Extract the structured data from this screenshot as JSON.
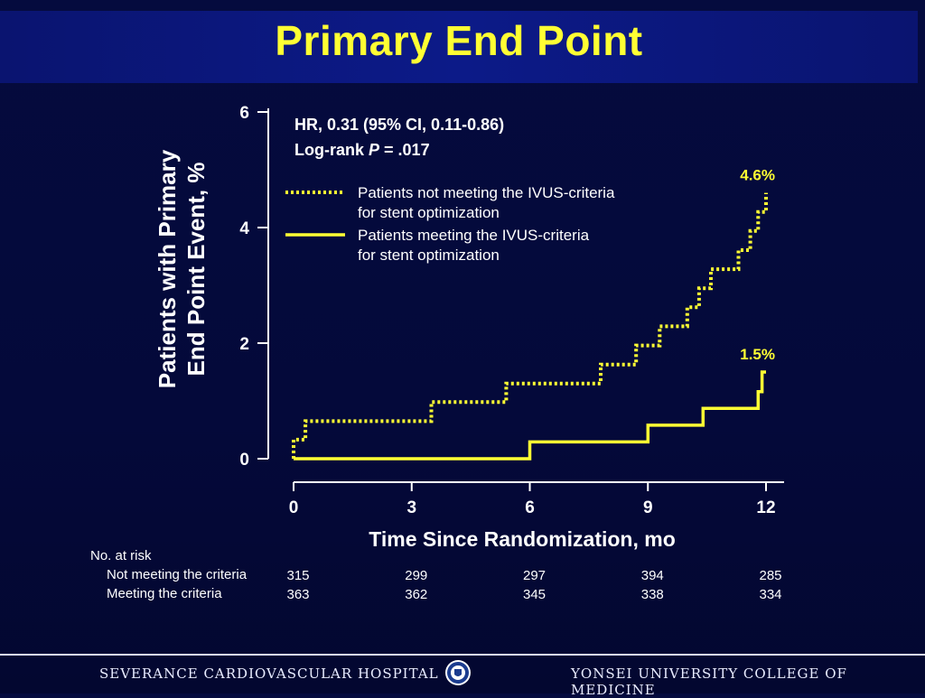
{
  "title": "Primary End Point",
  "colors": {
    "background": "#04093a",
    "title_bar": "#0c1a88",
    "title_text": "#ffff33",
    "series": "#ffff33"
  },
  "chart_data": {
    "type": "line",
    "subtype": "kaplan-meier step",
    "ylabel": [
      "Patients with Primary",
      "End Point Event, %"
    ],
    "xlabel": "Time Since Randomization, mo",
    "xlim": [
      0,
      12
    ],
    "ylim": [
      0,
      6
    ],
    "xticks": [
      0,
      3,
      6,
      9,
      12
    ],
    "yticks": [
      0,
      2,
      4,
      6
    ],
    "annotation": {
      "line1": "HR, 0.31 (95% CI, 0.11-0.86)",
      "line2_prefix": "Log-rank ",
      "line2_italic": "P",
      "line2_suffix": " = .017"
    },
    "legend_position": "top-center",
    "series": [
      {
        "name_lines": [
          "Patients not meeting the IVUS-criteria",
          "for stent optimization"
        ],
        "style": "dotted",
        "end_label": "4.6%",
        "points": [
          [
            0,
            0
          ],
          [
            0,
            0.33
          ],
          [
            0.3,
            0.33
          ],
          [
            0.3,
            0.65
          ],
          [
            3.5,
            0.65
          ],
          [
            3.5,
            0.98
          ],
          [
            5.4,
            0.98
          ],
          [
            5.4,
            1.3
          ],
          [
            7.8,
            1.3
          ],
          [
            7.8,
            1.63
          ],
          [
            8.7,
            1.63
          ],
          [
            8.7,
            1.96
          ],
          [
            9.3,
            1.96
          ],
          [
            9.3,
            2.29
          ],
          [
            10.0,
            2.29
          ],
          [
            10.0,
            2.62
          ],
          [
            10.3,
            2.62
          ],
          [
            10.3,
            2.95
          ],
          [
            10.6,
            2.95
          ],
          [
            10.6,
            3.28
          ],
          [
            11.3,
            3.28
          ],
          [
            11.3,
            3.61
          ],
          [
            11.6,
            3.61
          ],
          [
            11.6,
            3.94
          ],
          [
            11.8,
            3.94
          ],
          [
            11.8,
            4.27
          ],
          [
            12.0,
            4.27
          ],
          [
            12.0,
            4.6
          ]
        ]
      },
      {
        "name_lines": [
          "Patients meeting the IVUS-criteria",
          "for stent optimization"
        ],
        "style": "solid",
        "end_label": "1.5%",
        "points": [
          [
            0,
            0
          ],
          [
            6.0,
            0
          ],
          [
            6.0,
            0.29
          ],
          [
            9.0,
            0.29
          ],
          [
            9.0,
            0.58
          ],
          [
            10.4,
            0.58
          ],
          [
            10.4,
            0.87
          ],
          [
            11.8,
            0.87
          ],
          [
            11.8,
            1.16
          ],
          [
            11.9,
            1.16
          ],
          [
            11.9,
            1.5
          ],
          [
            12.0,
            1.5
          ]
        ]
      }
    ]
  },
  "at_risk": {
    "header": "No. at risk",
    "rows": [
      {
        "label": "Not meeting the criteria",
        "values": [
          "315",
          "299",
          "297",
          "394",
          "285"
        ]
      },
      {
        "label": "Meeting the criteria",
        "values": [
          "363",
          "362",
          "345",
          "338",
          "334"
        ]
      }
    ]
  },
  "footer": {
    "left": "SEVERANCE CARDIOVASCULAR HOSPITAL",
    "right": "YONSEI UNIVERSITY COLLEGE OF MEDICINE",
    "logo_icon": "university-seal-icon"
  }
}
